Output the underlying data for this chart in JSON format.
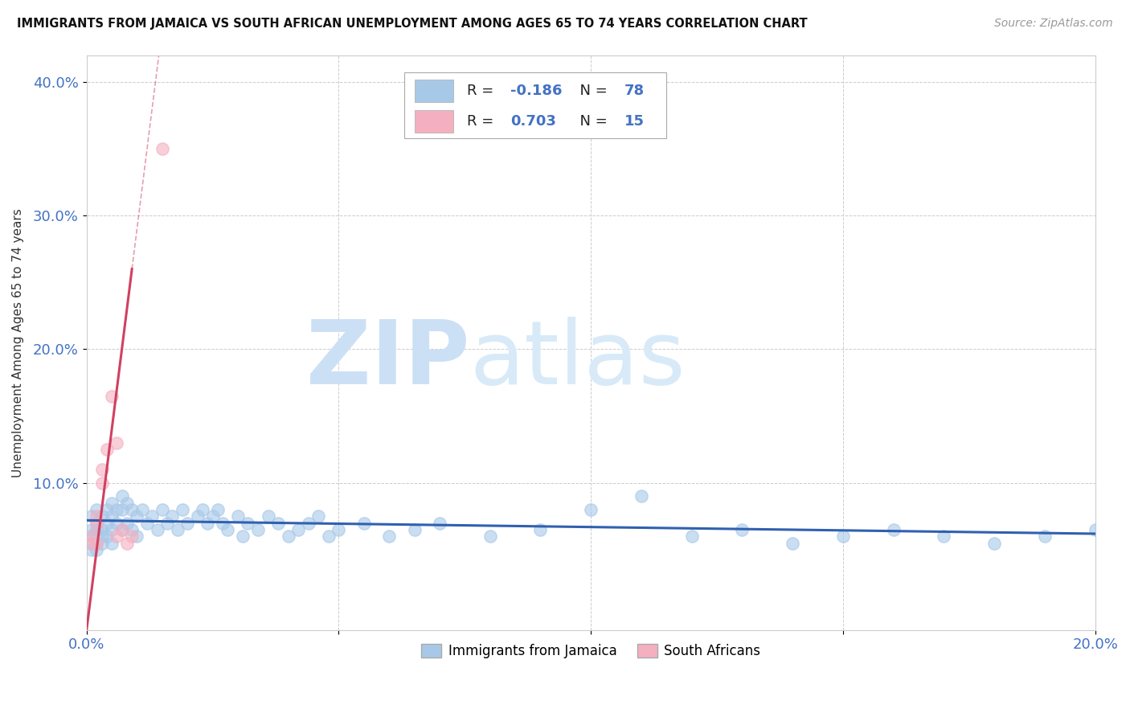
{
  "title": "IMMIGRANTS FROM JAMAICA VS SOUTH AFRICAN UNEMPLOYMENT AMONG AGES 65 TO 74 YEARS CORRELATION CHART",
  "source": "Source: ZipAtlas.com",
  "ylabel": "Unemployment Among Ages 65 to 74 years",
  "xlim": [
    0.0,
    0.2
  ],
  "ylim": [
    -0.01,
    0.42
  ],
  "xticks": [
    0.0,
    0.05,
    0.1,
    0.15,
    0.2
  ],
  "yticks": [
    0.1,
    0.2,
    0.3,
    0.4
  ],
  "xtick_labels": [
    "0.0%",
    "",
    "",
    "",
    "20.0%"
  ],
  "ytick_labels": [
    "10.0%",
    "20.0%",
    "30.0%",
    "40.0%"
  ],
  "legend1_label": "Immigrants from Jamaica",
  "legend2_label": "South Africans",
  "r1_text": "-0.186",
  "n1_text": "78",
  "r2_text": "0.703",
  "n2_text": "15",
  "color_jamaica": "#a8c8e8",
  "color_sa": "#f4b0c0",
  "color_jamaica_line": "#3060b0",
  "color_sa_line": "#d04060",
  "watermark_zip": "ZIP",
  "watermark_atlas": "atlas",
  "watermark_color": "#cce0f5",
  "background_color": "#ffffff",
  "jamaica_x": [
    0.001,
    0.001,
    0.001,
    0.001,
    0.001,
    0.002,
    0.002,
    0.002,
    0.002,
    0.002,
    0.003,
    0.003,
    0.003,
    0.003,
    0.004,
    0.004,
    0.004,
    0.005,
    0.005,
    0.005,
    0.005,
    0.006,
    0.006,
    0.007,
    0.007,
    0.007,
    0.008,
    0.008,
    0.009,
    0.009,
    0.01,
    0.01,
    0.011,
    0.012,
    0.013,
    0.014,
    0.015,
    0.016,
    0.017,
    0.018,
    0.019,
    0.02,
    0.022,
    0.023,
    0.024,
    0.025,
    0.026,
    0.027,
    0.028,
    0.03,
    0.031,
    0.032,
    0.034,
    0.036,
    0.038,
    0.04,
    0.042,
    0.044,
    0.046,
    0.048,
    0.05,
    0.055,
    0.06,
    0.065,
    0.07,
    0.08,
    0.09,
    0.1,
    0.11,
    0.12,
    0.13,
    0.14,
    0.15,
    0.16,
    0.17,
    0.18,
    0.19,
    0.2
  ],
  "jamaica_y": [
    0.075,
    0.065,
    0.06,
    0.055,
    0.05,
    0.08,
    0.07,
    0.065,
    0.055,
    0.05,
    0.075,
    0.065,
    0.06,
    0.055,
    0.08,
    0.07,
    0.06,
    0.085,
    0.075,
    0.065,
    0.055,
    0.08,
    0.07,
    0.09,
    0.08,
    0.065,
    0.085,
    0.07,
    0.08,
    0.065,
    0.075,
    0.06,
    0.08,
    0.07,
    0.075,
    0.065,
    0.08,
    0.07,
    0.075,
    0.065,
    0.08,
    0.07,
    0.075,
    0.08,
    0.07,
    0.075,
    0.08,
    0.07,
    0.065,
    0.075,
    0.06,
    0.07,
    0.065,
    0.075,
    0.07,
    0.06,
    0.065,
    0.07,
    0.075,
    0.06,
    0.065,
    0.07,
    0.06,
    0.065,
    0.07,
    0.06,
    0.065,
    0.08,
    0.09,
    0.06,
    0.065,
    0.055,
    0.06,
    0.065,
    0.06,
    0.055,
    0.06,
    0.065
  ],
  "sa_x": [
    0.001,
    0.001,
    0.002,
    0.002,
    0.002,
    0.003,
    0.003,
    0.004,
    0.005,
    0.006,
    0.006,
    0.007,
    0.008,
    0.009,
    0.015
  ],
  "sa_y": [
    0.06,
    0.055,
    0.075,
    0.07,
    0.055,
    0.11,
    0.1,
    0.125,
    0.165,
    0.13,
    0.06,
    0.065,
    0.055,
    0.06,
    0.35
  ],
  "jamaica_trend_x": [
    0.0,
    0.2
  ],
  "jamaica_trend_y": [
    0.072,
    0.062
  ],
  "sa_trend_x": [
    0.0,
    0.009
  ],
  "sa_trend_y": [
    -0.01,
    0.26
  ]
}
